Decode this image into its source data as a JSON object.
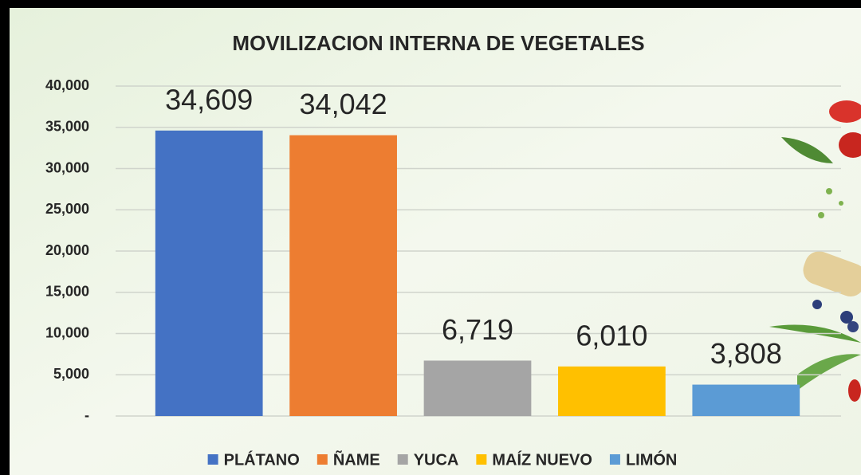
{
  "chart_data": {
    "type": "bar",
    "title": "MOVILIZACION INTERNA DE VEGETALES",
    "categories": [
      "PLÁTANO",
      "ÑAME",
      "YUCA",
      "MAÍZ NUEVO",
      "LIMÓN"
    ],
    "values": [
      34609,
      34042,
      6719,
      6010,
      3808
    ],
    "value_labels": [
      "34,609",
      "34,042",
      "6,719",
      "6,010",
      "3,808"
    ],
    "colors": [
      "#4472c4",
      "#ed7d31",
      "#a5a5a5",
      "#ffc000",
      "#5b9bd5"
    ],
    "ylim": [
      0,
      40000
    ],
    "yticks": [
      {
        "value": 0,
        "label": "-"
      },
      {
        "value": 5000,
        "label": "5,000"
      },
      {
        "value": 10000,
        "label": "10,000"
      },
      {
        "value": 15000,
        "label": "15,000"
      },
      {
        "value": 20000,
        "label": "20,000"
      },
      {
        "value": 25000,
        "label": "25,000"
      },
      {
        "value": 30000,
        "label": "30,000"
      },
      {
        "value": 35000,
        "label": "35,000"
      },
      {
        "value": 40000,
        "label": "40,000"
      }
    ],
    "grid": true,
    "legend": "bottom"
  }
}
